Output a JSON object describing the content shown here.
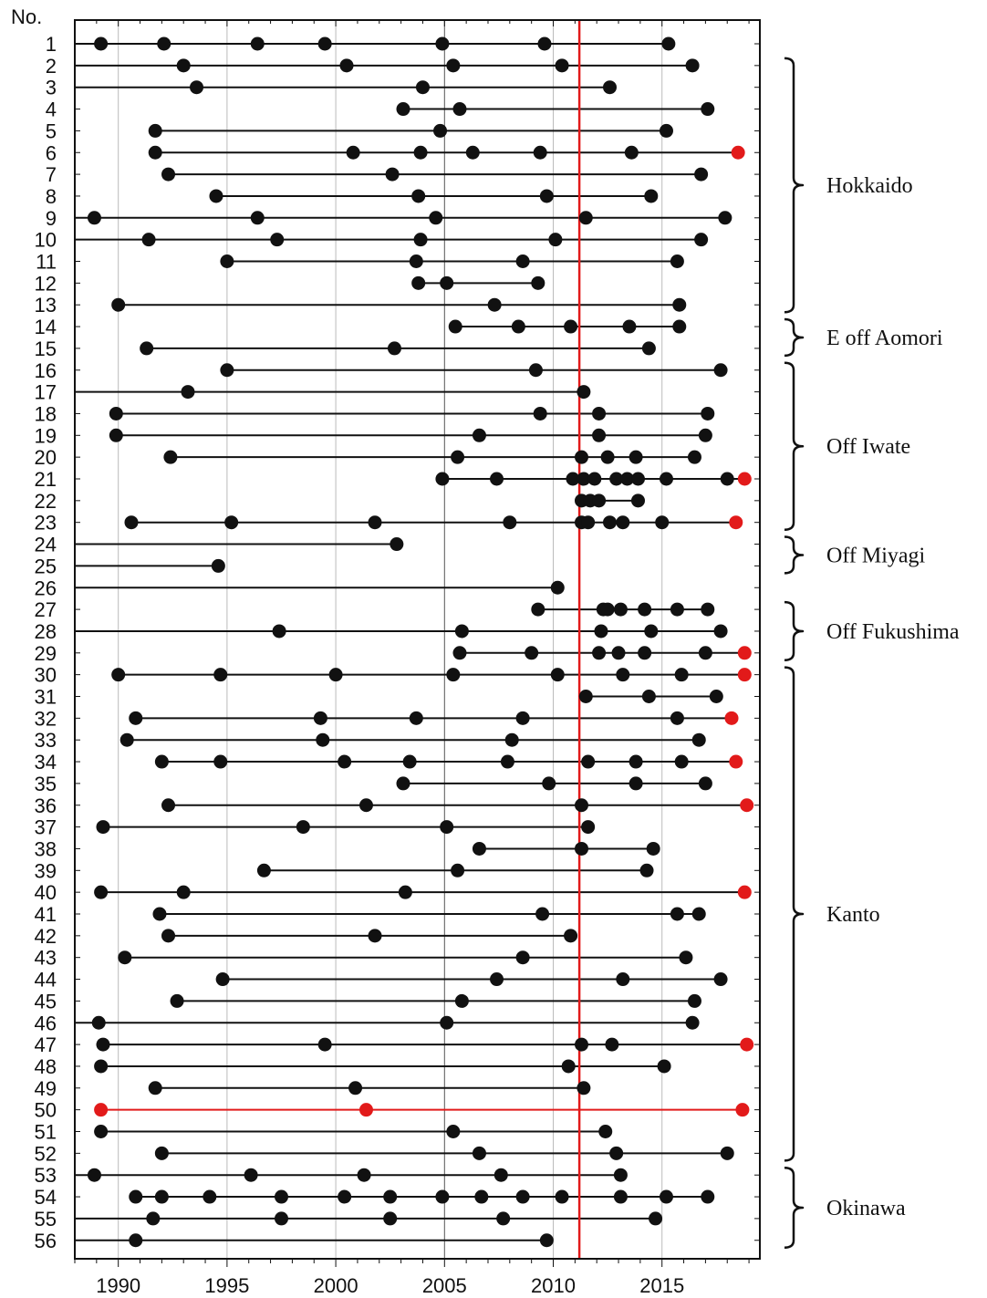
{
  "chart_data": {
    "type": "scatter",
    "y_header": "No.",
    "x_range": [
      1988,
      2019.5
    ],
    "x_ticks": [
      1990,
      1995,
      2000,
      2005,
      2010,
      2015
    ],
    "x_tick_labels": [
      "1990",
      "1995",
      "2000",
      "2005",
      "2010",
      "2015"
    ],
    "grid": true,
    "event_line": {
      "x": 2011.2,
      "color": "#e21a1a"
    },
    "colors": {
      "normal": "#111111",
      "highlight": "#e21a1a",
      "grid": "#bbbbbb",
      "axis": "#111111"
    },
    "rows": [
      {
        "no": "1",
        "line_from_edge": true,
        "events": [
          1989.2,
          1992.1,
          1996.4,
          1999.5,
          2004.9,
          2009.6,
          2015.3
        ]
      },
      {
        "no": "2",
        "line_from_edge": true,
        "events": [
          1993.0,
          2000.5,
          2005.4,
          2010.4,
          2016.4
        ]
      },
      {
        "no": "3",
        "line_from_edge": true,
        "events": [
          1993.6,
          2004.0,
          2012.6
        ]
      },
      {
        "no": "4",
        "line_from_edge": false,
        "events": [
          2003.1,
          2005.7,
          2017.1
        ]
      },
      {
        "no": "5",
        "line_from_edge": false,
        "events": [
          1991.7,
          2004.8,
          2015.2
        ]
      },
      {
        "no": "6",
        "line_from_edge": false,
        "events": [
          1991.7,
          2000.8,
          2003.9,
          2006.3,
          2009.4,
          2013.6,
          {
            "x": 2018.5,
            "red": true
          }
        ]
      },
      {
        "no": "7",
        "line_from_edge": false,
        "events": [
          1992.3,
          2002.6,
          2016.8
        ]
      },
      {
        "no": "8",
        "line_from_edge": false,
        "events": [
          1994.5,
          2003.8,
          2009.7,
          2014.5
        ]
      },
      {
        "no": "9",
        "line_from_edge": true,
        "events": [
          1988.9,
          1996.4,
          2004.6,
          2011.5,
          2017.9
        ]
      },
      {
        "no": "10",
        "line_from_edge": true,
        "events": [
          1991.4,
          1997.3,
          2003.9,
          2010.1,
          2016.8
        ]
      },
      {
        "no": "11",
        "line_from_edge": false,
        "events": [
          1995.0,
          2003.7,
          2008.6,
          2015.7
        ]
      },
      {
        "no": "12",
        "line_from_edge": false,
        "events": [
          2003.8,
          2005.1,
          2009.3
        ]
      },
      {
        "no": "13",
        "line_from_edge": false,
        "events": [
          1990.0,
          2007.3,
          2015.8
        ]
      },
      {
        "no": "14",
        "line_from_edge": false,
        "events": [
          2005.5,
          2008.4,
          2010.8,
          2013.5,
          2015.8
        ]
      },
      {
        "no": "15",
        "line_from_edge": false,
        "events": [
          1991.3,
          2002.7,
          2014.4
        ]
      },
      {
        "no": "16",
        "line_from_edge": false,
        "events": [
          1995.0,
          2009.2,
          2017.7
        ]
      },
      {
        "no": "17",
        "line_from_edge": true,
        "events": [
          1993.2,
          2011.4
        ]
      },
      {
        "no": "18",
        "line_from_edge": false,
        "events": [
          1989.9,
          2009.4,
          2012.1,
          2017.1
        ]
      },
      {
        "no": "19",
        "line_from_edge": false,
        "events": [
          1989.9,
          2006.6,
          2012.1,
          2017.0
        ]
      },
      {
        "no": "20",
        "line_from_edge": false,
        "events": [
          1992.4,
          2005.6,
          2011.3,
          2012.5,
          2013.8,
          2016.5
        ]
      },
      {
        "no": "21",
        "line_from_edge": false,
        "events": [
          2004.9,
          2007.4,
          2010.9,
          2011.4,
          2011.9,
          2012.9,
          2013.4,
          2013.9,
          2015.2,
          2018.0,
          {
            "x": 2018.8,
            "red": true
          }
        ]
      },
      {
        "no": "22",
        "line_from_edge": false,
        "events": [
          2011.3,
          2011.7,
          2012.1,
          2013.9
        ]
      },
      {
        "no": "23",
        "line_from_edge": false,
        "events": [
          1990.6,
          1995.2,
          2001.8,
          2008.0,
          2011.3,
          2011.6,
          2012.6,
          2013.2,
          2015.0,
          {
            "x": 2018.4,
            "red": true
          }
        ]
      },
      {
        "no": "24",
        "line_from_edge": true,
        "events": [
          2002.8
        ]
      },
      {
        "no": "25",
        "line_from_edge": true,
        "events": [
          1994.6
        ]
      },
      {
        "no": "26",
        "line_from_edge": true,
        "events": [
          2010.2
        ]
      },
      {
        "no": "27",
        "line_from_edge": false,
        "events": [
          2009.3,
          2012.3,
          2012.5,
          2013.1,
          2014.2,
          2015.7,
          2017.1
        ]
      },
      {
        "no": "28",
        "line_from_edge": true,
        "events": [
          1997.4,
          2005.8,
          2012.2,
          2014.5,
          2017.7
        ]
      },
      {
        "no": "29",
        "line_from_edge": false,
        "events": [
          2005.7,
          2009.0,
          2012.1,
          2013.0,
          2014.2,
          2017.0,
          {
            "x": 2018.8,
            "red": true
          }
        ]
      },
      {
        "no": "30",
        "line_from_edge": false,
        "events": [
          1990.0,
          1994.7,
          2000.0,
          2005.4,
          2010.2,
          2013.2,
          2015.9,
          {
            "x": 2018.8,
            "red": true
          }
        ]
      },
      {
        "no": "31",
        "line_from_edge": false,
        "events": [
          2011.5,
          2014.4,
          2017.5
        ]
      },
      {
        "no": "32",
        "line_from_edge": false,
        "events": [
          1990.8,
          1999.3,
          2003.7,
          2008.6,
          2015.7,
          {
            "x": 2018.2,
            "red": true
          }
        ]
      },
      {
        "no": "33",
        "line_from_edge": false,
        "events": [
          1990.4,
          1999.4,
          2008.1,
          2016.7
        ]
      },
      {
        "no": "34",
        "line_from_edge": false,
        "events": [
          1992.0,
          1994.7,
          2000.4,
          2003.4,
          2007.9,
          2011.6,
          2013.8,
          2015.9,
          {
            "x": 2018.4,
            "red": true
          }
        ]
      },
      {
        "no": "35",
        "line_from_edge": false,
        "events": [
          2003.1,
          2009.8,
          2013.8,
          2017.0
        ]
      },
      {
        "no": "36",
        "line_from_edge": false,
        "events": [
          1992.3,
          2001.4,
          2011.3,
          {
            "x": 2018.9,
            "red": true
          }
        ]
      },
      {
        "no": "37",
        "line_from_edge": false,
        "events": [
          1989.3,
          1998.5,
          2005.1,
          2011.6
        ]
      },
      {
        "no": "38",
        "line_from_edge": false,
        "events": [
          2006.6,
          2011.3,
          2014.6
        ]
      },
      {
        "no": "39",
        "line_from_edge": false,
        "events": [
          1996.7,
          2005.6,
          2014.3
        ]
      },
      {
        "no": "40",
        "line_from_edge": false,
        "events": [
          1989.2,
          1993.0,
          2003.2,
          {
            "x": 2018.8,
            "red": true
          }
        ]
      },
      {
        "no": "41",
        "line_from_edge": false,
        "events": [
          1991.9,
          2009.5,
          2015.7,
          2016.7
        ]
      },
      {
        "no": "42",
        "line_from_edge": false,
        "events": [
          1992.3,
          2001.8,
          2010.8
        ]
      },
      {
        "no": "43",
        "line_from_edge": false,
        "events": [
          1990.3,
          2008.6,
          2016.1
        ]
      },
      {
        "no": "44",
        "line_from_edge": false,
        "events": [
          1994.8,
          2007.4,
          2013.2,
          2017.7
        ]
      },
      {
        "no": "45",
        "line_from_edge": false,
        "events": [
          1992.7,
          2005.8,
          2016.5
        ]
      },
      {
        "no": "46",
        "line_from_edge": true,
        "events": [
          1989.1,
          2005.1,
          2016.4
        ]
      },
      {
        "no": "47",
        "line_from_edge": false,
        "events": [
          1989.3,
          1999.5,
          2011.3,
          2012.7,
          {
            "x": 2018.9,
            "red": true
          }
        ]
      },
      {
        "no": "48",
        "line_from_edge": false,
        "events": [
          1989.2,
          2010.7,
          2015.1
        ]
      },
      {
        "no": "49",
        "line_from_edge": false,
        "events": [
          1991.7,
          2000.9,
          2011.4
        ]
      },
      {
        "no": "50",
        "line_from_edge": false,
        "red_line": true,
        "events": [
          {
            "x": 1989.2,
            "red": true
          },
          {
            "x": 2001.4,
            "red": true
          },
          {
            "x": 2018.7,
            "red": true
          }
        ]
      },
      {
        "no": "51",
        "line_from_edge": false,
        "events": [
          1989.2,
          2005.4,
          2012.4
        ]
      },
      {
        "no": "52",
        "line_from_edge": false,
        "events": [
          1992.0,
          2006.6,
          2012.9,
          2018.0
        ]
      },
      {
        "no": "53",
        "line_from_edge": true,
        "events": [
          1988.9,
          1996.1,
          2001.3,
          2007.6,
          2013.1
        ]
      },
      {
        "no": "54",
        "line_from_edge": false,
        "events": [
          1990.8,
          1992.0,
          1994.2,
          1997.5,
          2000.4,
          2002.5,
          2004.9,
          2006.7,
          2008.6,
          2010.4,
          2013.1,
          2015.2,
          2017.1
        ]
      },
      {
        "no": "55",
        "line_from_edge": true,
        "events": [
          1991.6,
          1997.5,
          2002.5,
          2007.7,
          2014.7
        ]
      },
      {
        "no": "56",
        "line_from_edge": true,
        "events": [
          1990.8,
          2009.7
        ]
      }
    ],
    "regions": [
      {
        "name": "Hokkaido",
        "from": "2",
        "to": "13"
      },
      {
        "name": "E off Aomori",
        "from": "14",
        "to": "15"
      },
      {
        "name": "Off Iwate",
        "from": "16",
        "to": "23"
      },
      {
        "name": "Off Miyagi",
        "from": "24",
        "to": "25"
      },
      {
        "name": "Off Fukushima",
        "from": "27",
        "to": "29"
      },
      {
        "name": "Kanto",
        "from": "30",
        "to": "52"
      },
      {
        "name": "Okinawa",
        "from": "53",
        "to": "56"
      }
    ]
  }
}
